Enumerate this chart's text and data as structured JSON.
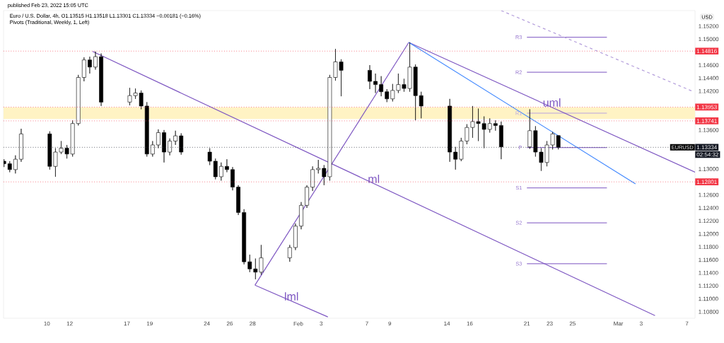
{
  "chart_data": {
    "type": "candlestick",
    "title": "Euro / U.S. Dollar, 4h, O1.13515 H1.13518 L1.13301 C1.13334 −0.00181 (−0.16%)",
    "subtitle": "Pivots (Traditional, Weekly, 1, Left)",
    "ylabel": "USD",
    "x": [
      "2022-01-06T06:00",
      "2022-01-06T18:00",
      "2022-01-07T06:00",
      "2022-01-07T18:00",
      "2022-01-10T06:00",
      "2022-01-10T18:00",
      "2022-01-11T06:00",
      "2022-01-11T18:00",
      "2022-01-12T06:00",
      "2022-01-12T18:00",
      "2022-01-13T06:00",
      "2022-01-13T18:00",
      "2022-01-14T06:00",
      "2022-01-14T18:00",
      "2022-01-17T06:00",
      "2022-01-17T18:00",
      "2022-01-18T06:00",
      "2022-01-18T18:00",
      "2022-01-19T06:00",
      "2022-01-19T18:00",
      "2022-01-20T06:00",
      "2022-01-20T18:00",
      "2022-01-21T06:00",
      "2022-01-21T18:00",
      "2022-01-24T06:00",
      "2022-01-24T18:00",
      "2022-01-25T06:00",
      "2022-01-25T18:00",
      "2022-01-26T06:00",
      "2022-01-26T18:00",
      "2022-01-27T06:00",
      "2022-01-27T18:00",
      "2022-01-28T06:00",
      "2022-01-28T18:00",
      "2022-01-31T06:00",
      "2022-01-31T18:00",
      "2022-02-01T06:00",
      "2022-02-01T18:00",
      "2022-02-02T06:00",
      "2022-02-02T18:00",
      "2022-02-03T06:00",
      "2022-02-03T18:00",
      "2022-02-04T06:00",
      "2022-02-04T18:00",
      "2022-02-07T06:00",
      "2022-02-07T18:00",
      "2022-02-08T06:00",
      "2022-02-08T18:00",
      "2022-02-09T06:00",
      "2022-02-09T18:00",
      "2022-02-10T06:00",
      "2022-02-10T18:00",
      "2022-02-11T06:00",
      "2022-02-11T18:00",
      "2022-02-14T06:00",
      "2022-02-14T18:00",
      "2022-02-15T06:00",
      "2022-02-15T18:00",
      "2022-02-16T06:00",
      "2022-02-16T18:00",
      "2022-02-17T06:00",
      "2022-02-17T18:00",
      "2022-02-18T06:00",
      "2022-02-18T18:00",
      "2022-02-21T06:00",
      "2022-02-21T18:00",
      "2022-02-22T06:00",
      "2022-02-22T18:00",
      "2022-02-23T06:00",
      "2022-02-23T18:00"
    ],
    "ohlc": [
      [
        1.1312,
        1.1315,
        1.1303,
        1.1308
      ],
      [
        1.1308,
        1.1312,
        1.1295,
        1.1299
      ],
      [
        1.1299,
        1.1321,
        1.1293,
        1.1315
      ],
      [
        1.1315,
        1.1362,
        1.1311,
        1.1354
      ],
      [
        1.1354,
        1.1358,
        1.1299,
        1.1304
      ],
      [
        1.1304,
        1.1332,
        1.1288,
        1.1326
      ],
      [
        1.1326,
        1.1343,
        1.1323,
        1.1332
      ],
      [
        1.1332,
        1.1337,
        1.1316,
        1.1323
      ],
      [
        1.1323,
        1.1375,
        1.1319,
        1.137
      ],
      [
        1.137,
        1.1445,
        1.1367,
        1.1441
      ],
      [
        1.1441,
        1.1472,
        1.1435,
        1.1468
      ],
      [
        1.1468,
        1.1473,
        1.1447,
        1.1457
      ],
      [
        1.1457,
        1.1481,
        1.1453,
        1.1473
      ],
      [
        1.1473,
        1.1478,
        1.1397,
        1.1403
      ],
      [
        1.1403,
        1.1425,
        1.1398,
        1.1413
      ],
      [
        1.1413,
        1.1424,
        1.1408,
        1.1417
      ],
      [
        1.1417,
        1.1421,
        1.1392,
        1.1397
      ],
      [
        1.1397,
        1.1403,
        1.1319,
        1.1323
      ],
      [
        1.1323,
        1.1343,
        1.1319,
        1.1337
      ],
      [
        1.1337,
        1.1361,
        1.1332,
        1.1356
      ],
      [
        1.1356,
        1.136,
        1.131,
        1.1326
      ],
      [
        1.1326,
        1.1347,
        1.1321,
        1.1343
      ],
      [
        1.1343,
        1.1359,
        1.1337,
        1.1351
      ],
      [
        1.1351,
        1.1355,
        1.1322,
        1.1326
      ],
      [
        1.1326,
        1.1332,
        1.1306,
        1.1312
      ],
      [
        1.1312,
        1.1316,
        1.1284,
        1.1288
      ],
      [
        1.1288,
        1.131,
        1.1282,
        1.1304
      ],
      [
        1.1304,
        1.1315,
        1.1295,
        1.1299
      ],
      [
        1.1299,
        1.1303,
        1.1267,
        1.1272
      ],
      [
        1.1272,
        1.1275,
        1.1229,
        1.1233
      ],
      [
        1.1233,
        1.1238,
        1.1153,
        1.1157
      ],
      [
        1.1157,
        1.1168,
        1.1141,
        1.1146
      ],
      [
        1.1146,
        1.1162,
        1.113,
        1.1141
      ],
      [
        1.1141,
        1.1183,
        1.1137,
        1.1163
      ],
      [
        1.1163,
        1.1183,
        1.1157,
        1.1179
      ],
      [
        1.1179,
        1.1216,
        1.1175,
        1.1212
      ],
      [
        1.1212,
        1.1249,
        1.1207,
        1.1244
      ],
      [
        1.1244,
        1.1275,
        1.124,
        1.1272
      ],
      [
        1.1272,
        1.1304,
        1.1266,
        1.1299
      ],
      [
        1.1299,
        1.1314,
        1.1293,
        1.1301
      ],
      [
        1.1301,
        1.1306,
        1.1275,
        1.1288
      ],
      [
        1.1288,
        1.1445,
        1.1282,
        1.1441
      ],
      [
        1.1441,
        1.1485,
        1.1436,
        1.1465
      ],
      [
        1.1465,
        1.1469,
        1.1412,
        1.1452
      ],
      [
        1.1452,
        1.146,
        1.1423,
        1.1435
      ],
      [
        1.1435,
        1.1447,
        1.1417,
        1.143
      ],
      [
        1.143,
        1.1443,
        1.1412,
        1.1419
      ],
      [
        1.1419,
        1.1423,
        1.1403,
        1.1408
      ],
      [
        1.1408,
        1.1431,
        1.1404,
        1.1421
      ],
      [
        1.1421,
        1.1447,
        1.1417,
        1.143
      ],
      [
        1.143,
        1.1439,
        1.1419,
        1.1424
      ],
      [
        1.1424,
        1.1495,
        1.1419,
        1.1457
      ],
      [
        1.1457,
        1.1461,
        1.1375,
        1.1413
      ],
      [
        1.1413,
        1.1419,
        1.1378,
        1.1397
      ],
      [
        1.1397,
        1.1408,
        1.1311,
        1.1326
      ],
      [
        1.1326,
        1.1334,
        1.1299,
        1.1315
      ],
      [
        1.1315,
        1.1348,
        1.1312,
        1.1343
      ],
      [
        1.1343,
        1.1369,
        1.1338,
        1.1364
      ],
      [
        1.1364,
        1.1397,
        1.1348,
        1.1373
      ],
      [
        1.1373,
        1.1393,
        1.1343,
        1.137
      ],
      [
        1.137,
        1.1381,
        1.1332,
        1.1361
      ],
      [
        1.1361,
        1.1378,
        1.1356,
        1.137
      ],
      [
        1.137,
        1.1375,
        1.1359,
        1.1367
      ],
      [
        1.1367,
        1.1373,
        1.1315,
        1.1334
      ],
      [
        1.1334,
        1.1392,
        1.1331,
        1.1359
      ],
      [
        1.1359,
        1.1366,
        1.1319,
        1.1326
      ],
      [
        1.1326,
        1.1332,
        1.1297,
        1.131
      ],
      [
        1.131,
        1.1343,
        1.1304,
        1.1337
      ],
      [
        1.1337,
        1.1357,
        1.133,
        1.1354
      ],
      [
        1.13515,
        1.13518,
        1.13301,
        1.13334
      ]
    ],
    "series": [
      {
        "name": "R3",
        "type": "line",
        "color": "#9575cd",
        "x": [
          "2022-02-21T00:00",
          "2022-02-28T00:00"
        ],
        "values": [
          1.1503,
          1.1503
        ]
      },
      {
        "name": "R2",
        "type": "line",
        "color": "#9575cd",
        "x": [
          "2022-02-21T00:00",
          "2022-02-28T00:00"
        ],
        "values": [
          1.1449,
          1.1449
        ]
      },
      {
        "name": "R1",
        "type": "line",
        "color": "#b7a3e0",
        "x": [
          "2022-02-21T00:00",
          "2022-02-28T00:00"
        ],
        "values": [
          1.1386,
          1.1386
        ]
      },
      {
        "name": "P",
        "type": "line",
        "color": "#9575cd",
        "x": [
          "2022-02-21T00:00",
          "2022-02-28T00:00"
        ],
        "values": [
          1.1333,
          1.1333
        ]
      },
      {
        "name": "S1",
        "type": "line",
        "color": "#9575cd",
        "x": [
          "2022-02-21T00:00",
          "2022-02-28T00:00"
        ],
        "values": [
          1.1271,
          1.1271
        ]
      },
      {
        "name": "S2",
        "type": "line",
        "color": "#9575cd",
        "x": [
          "2022-02-21T00:00",
          "2022-02-28T00:00"
        ],
        "values": [
          1.1217,
          1.1217
        ]
      },
      {
        "name": "S3",
        "type": "line",
        "color": "#9575cd",
        "x": [
          "2022-02-21T00:00",
          "2022-02-28T00:00"
        ],
        "values": [
          1.1154,
          1.1154
        ]
      },
      {
        "name": "ml",
        "type": "line",
        "color": "#7e57c2",
        "x": [
          "2022-01-14T00:00",
          "2022-03-04T05:00"
        ],
        "values": [
          1.1481,
          1.1074
        ]
      },
      {
        "name": "uml",
        "type": "line",
        "color": "#7e57c2",
        "x": [
          "2022-02-10T16:00",
          "2022-03-07T17:00"
        ],
        "values": [
          1.1495,
          1.1295
        ]
      },
      {
        "name": "lml",
        "type": "line",
        "color": "#7e57c2",
        "x": [
          "2022-01-28T05:00",
          "2022-02-03T14:00"
        ],
        "values": [
          1.1121,
          1.1072
        ]
      },
      {
        "type": "line",
        "color": "#7e57c2",
        "x": [
          "2022-01-28T05:00",
          "2022-02-10T16:00"
        ],
        "values": [
          1.1121,
          1.1495
        ]
      },
      {
        "type": "line",
        "color": "#448aff",
        "x": [
          "2022-02-10T16:00",
          "2022-03-02T12:00"
        ],
        "values": [
          1.1495,
          1.1277
        ]
      },
      {
        "type": "line",
        "color": "#b39ddb",
        "line_style": "dashed",
        "x": [
          "2022-02-18T18:00",
          "2022-03-07T14:00"
        ],
        "values": [
          1.1544,
          1.1419
        ]
      }
    ],
    "ref_lines": [
      {
        "axis": "y",
        "value": 1.14816,
        "label": "1.14816",
        "color": "#f23645",
        "line_style": "dotted"
      },
      {
        "axis": "y",
        "value": 1.13953,
        "label": "1.13953",
        "color": "#f23645",
        "line_style": "dotted"
      },
      {
        "axis": "y",
        "value": 1.13741,
        "label": "1.13741",
        "color": "#f23645",
        "line_style": "dotted"
      },
      {
        "axis": "y",
        "value": 1.12801,
        "label": "1.12801",
        "color": "#f23645",
        "line_style": "dotted"
      },
      {
        "axis": "y",
        "value": 1.13334,
        "label": "EURUSD",
        "color": "#787b86",
        "line_style": "dotted"
      },
      {
        "axis": "y",
        "value": 1.13334,
        "label": "1.13334",
        "color": "#131722",
        "line_style": "dotted"
      }
    ],
    "bands": [
      {
        "axis": "y",
        "from": 1.1377,
        "to": 1.1395,
        "color": "#fff3c4"
      }
    ],
    "annotations": [
      "published Feb 23, 2022 15:05 UTC",
      "02:54:32"
    ],
    "xlim": [
      "2022-01-06T05:00",
      "2022-03-07T17:00"
    ],
    "ylim": [
      1.107,
      1.1544
    ],
    "xticks": [
      {
        "value": "2022-01-10",
        "label": "10"
      },
      {
        "value": "2022-01-12",
        "label": "12"
      },
      {
        "value": "2022-01-17",
        "label": "17"
      },
      {
        "value": "2022-01-19",
        "label": "19"
      },
      {
        "value": "2022-01-24",
        "label": "24"
      },
      {
        "value": "2022-01-26",
        "label": "26"
      },
      {
        "value": "2022-01-28",
        "label": "28"
      },
      {
        "value": "2022-02-01",
        "label": "Feb"
      },
      {
        "value": "2022-02-03",
        "label": "3"
      },
      {
        "value": "2022-02-07",
        "label": "7"
      },
      {
        "value": "2022-02-09",
        "label": "9"
      },
      {
        "value": "2022-02-14",
        "label": "14"
      },
      {
        "value": "2022-02-16",
        "label": "16"
      },
      {
        "value": "2022-02-21",
        "label": "21"
      },
      {
        "value": "2022-02-23",
        "label": "23"
      },
      {
        "value": "2022-02-25",
        "label": "25"
      },
      {
        "value": "2022-03-01",
        "label": "Mar"
      },
      {
        "value": "2022-03-03",
        "label": "3"
      },
      {
        "value": "2022-03-07",
        "label": "7"
      }
    ],
    "yticks": [
      {
        "value": 1.108,
        "label": "1.10800"
      },
      {
        "value": 1.11,
        "label": "1.11000"
      },
      {
        "value": 1.112,
        "label": "1.11200"
      },
      {
        "value": 1.114,
        "label": "1.11400"
      },
      {
        "value": 1.116,
        "label": "1.11600"
      },
      {
        "value": 1.118,
        "label": "1.11800"
      },
      {
        "value": 1.12,
        "label": "1.12000"
      },
      {
        "value": 1.122,
        "label": "1.12200"
      },
      {
        "value": 1.124,
        "label": "1.12400"
      },
      {
        "value": 1.126,
        "label": "1.12600"
      },
      {
        "value": 1.13,
        "label": "1.13000"
      },
      {
        "value": 1.136,
        "label": "1.13600"
      },
      {
        "value": 1.142,
        "label": "1.14200"
      },
      {
        "value": 1.144,
        "label": "1.14400"
      },
      {
        "value": 1.146,
        "label": "1.14600"
      },
      {
        "value": 1.15,
        "label": "1.15000"
      },
      {
        "value": 1.152,
        "label": "1.15200"
      }
    ],
    "grid": false
  }
}
